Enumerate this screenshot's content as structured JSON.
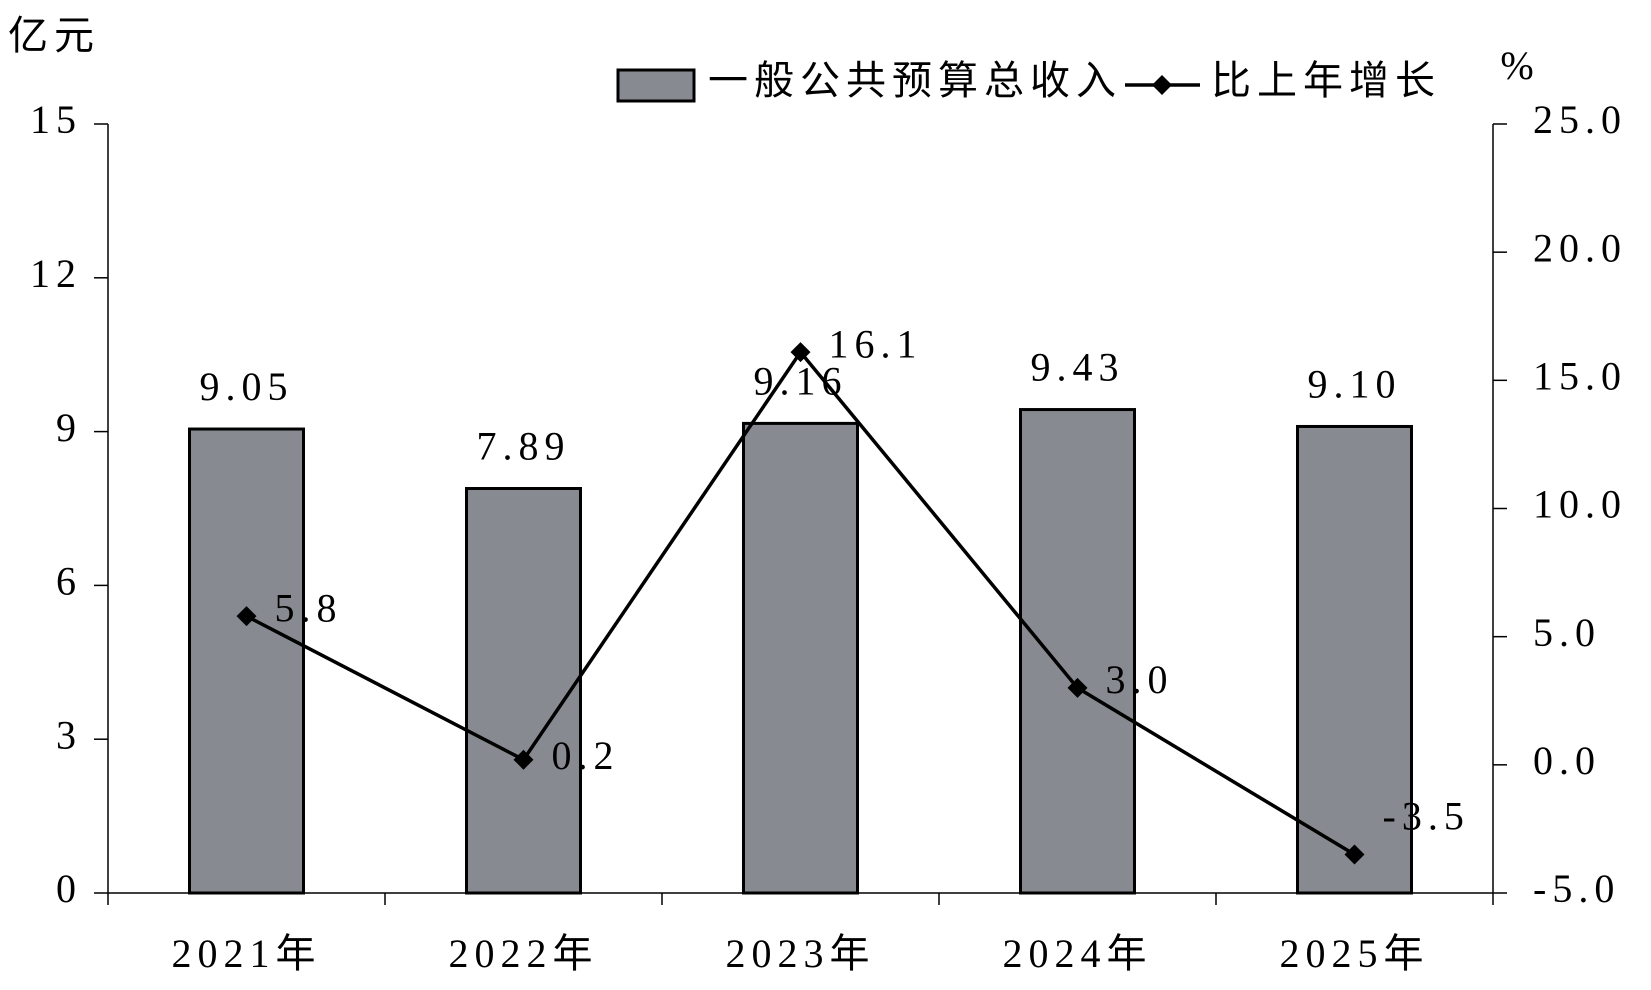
{
  "chart_data": {
    "type": "bar",
    "y_label": "亿元",
    "y2_label": "%",
    "categories": [
      "2021年",
      "2022年",
      "2023年",
      "2024年",
      "2025年"
    ],
    "series": [
      {
        "name": "一般公共预算总收入",
        "type": "bar",
        "color": "#878a90",
        "values": [
          9.05,
          7.89,
          9.16,
          9.43,
          9.1
        ],
        "value_labels": [
          "9.05",
          "7.89",
          "9.16",
          "9.43",
          "9.10"
        ]
      },
      {
        "name": "比上年增长",
        "type": "line",
        "color": "#000000",
        "axis": "y2",
        "values": [
          5.8,
          0.2,
          16.1,
          3.0,
          -3.5
        ],
        "value_labels": [
          "5.8",
          "0.2",
          "16.1",
          "3.0",
          "-3.5"
        ]
      }
    ],
    "ylim": [
      0,
      15
    ],
    "yticks": [
      0,
      3,
      6,
      9,
      12,
      15
    ],
    "y2lim": [
      -5,
      25
    ],
    "y2ticks": [
      {
        "value": -5,
        "label": "-5.0"
      },
      {
        "value": 0,
        "label": "0.0"
      },
      {
        "value": 5,
        "label": "5.0"
      },
      {
        "value": 10,
        "label": "10.0"
      },
      {
        "value": 15,
        "label": "15.0"
      },
      {
        "value": 20,
        "label": "20.0"
      },
      {
        "value": 25,
        "label": "25.0"
      }
    ],
    "legend": "top"
  }
}
